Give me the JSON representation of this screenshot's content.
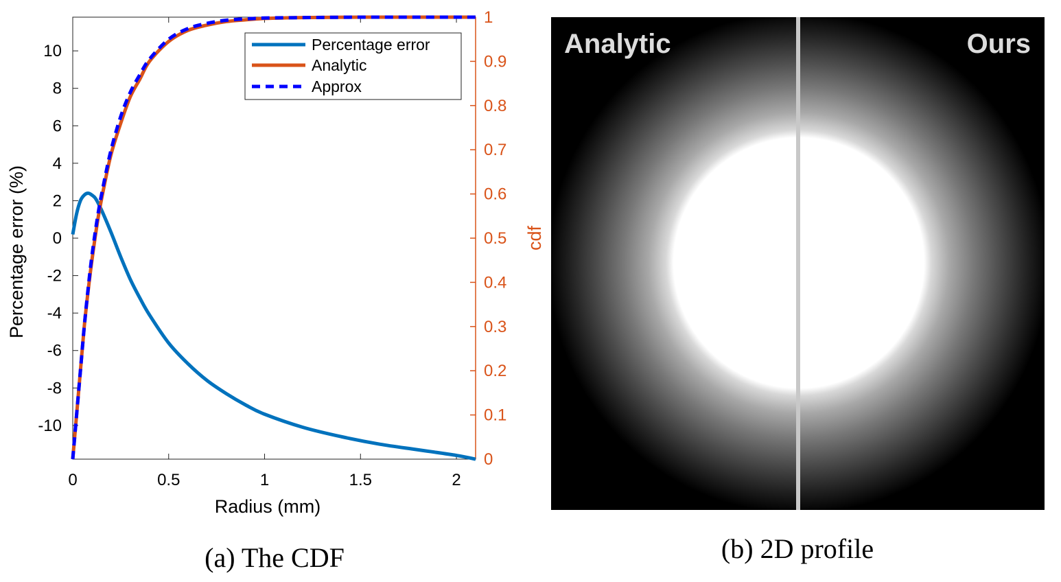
{
  "colors": {
    "percentage_error": "#0072BD",
    "analytic": "#D95319",
    "approx": "#0000FF",
    "right_axis": "#D95319"
  },
  "chart_data": [
    {
      "type": "line",
      "title": "",
      "caption": "(a) The CDF",
      "xlabel": "Radius (mm)",
      "ylabel_left": "Percentage error (%)",
      "ylabel_right": "cdf",
      "xlim": [
        0,
        2.1
      ],
      "ylim_left": [
        -11.8,
        11.8
      ],
      "ylim_right": [
        0,
        1
      ],
      "x_ticks": [
        "0",
        "0.5",
        "1",
        "1.5",
        "2"
      ],
      "y_left_ticks": [
        "10",
        "8",
        "6",
        "4",
        "2",
        "0",
        "-2",
        "-4",
        "-6",
        "-8",
        "-10"
      ],
      "y_right_ticks": [
        "0",
        "0.1",
        "0.2",
        "0.3",
        "0.4",
        "0.5",
        "0.6",
        "0.7",
        "0.8",
        "0.9",
        "1"
      ],
      "legend_position": "top-right",
      "grid": false,
      "series": [
        {
          "name": "Percentage error",
          "axis": "left",
          "style": "solid",
          "x": [
            0,
            0.02,
            0.04,
            0.06,
            0.08,
            0.1,
            0.12,
            0.15,
            0.2,
            0.25,
            0.3,
            0.35,
            0.4,
            0.5,
            0.6,
            0.7,
            0.8,
            0.9,
            1.0,
            1.2,
            1.4,
            1.6,
            1.8,
            2.0,
            2.1
          ],
          "y": [
            0.2,
            1.3,
            2.0,
            2.3,
            2.4,
            2.3,
            2.1,
            1.5,
            0.3,
            -1.0,
            -2.2,
            -3.2,
            -4.1,
            -5.6,
            -6.7,
            -7.6,
            -8.3,
            -8.9,
            -9.4,
            -10.1,
            -10.6,
            -11.0,
            -11.3,
            -11.6,
            -11.8
          ]
        },
        {
          "name": "Analytic",
          "axis": "right",
          "style": "solid",
          "x": [
            0,
            0.01,
            0.02,
            0.04,
            0.06,
            0.08,
            0.1,
            0.13,
            0.16,
            0.2,
            0.25,
            0.3,
            0.35,
            0.4,
            0.5,
            0.6,
            0.7,
            0.8,
            0.9,
            1.0,
            1.2,
            1.5,
            1.8,
            2.1
          ],
          "y": [
            0,
            0.05,
            0.1,
            0.2,
            0.3,
            0.38,
            0.45,
            0.54,
            0.61,
            0.69,
            0.76,
            0.82,
            0.86,
            0.9,
            0.945,
            0.97,
            0.982,
            0.99,
            0.994,
            0.997,
            0.999,
            1.0,
            1.0,
            1.0
          ]
        },
        {
          "name": "Approx",
          "axis": "right",
          "style": "dashed",
          "x": [
            0,
            0.01,
            0.02,
            0.04,
            0.06,
            0.08,
            0.1,
            0.13,
            0.16,
            0.2,
            0.25,
            0.3,
            0.35,
            0.4,
            0.5,
            0.6,
            0.7,
            0.8,
            0.9,
            1.0,
            1.2,
            1.5,
            1.8,
            2.1
          ],
          "y": [
            0,
            0.05,
            0.1,
            0.2,
            0.3,
            0.385,
            0.46,
            0.55,
            0.62,
            0.7,
            0.775,
            0.83,
            0.87,
            0.905,
            0.95,
            0.974,
            0.986,
            0.993,
            0.996,
            0.998,
            0.999,
            1.0,
            1.0,
            1.0
          ]
        }
      ]
    },
    {
      "type": "heatmap",
      "caption": "(b) 2D profile",
      "panels": [
        {
          "label": "Analytic",
          "position": "left"
        },
        {
          "label": "Ours",
          "position": "right"
        }
      ]
    }
  ]
}
